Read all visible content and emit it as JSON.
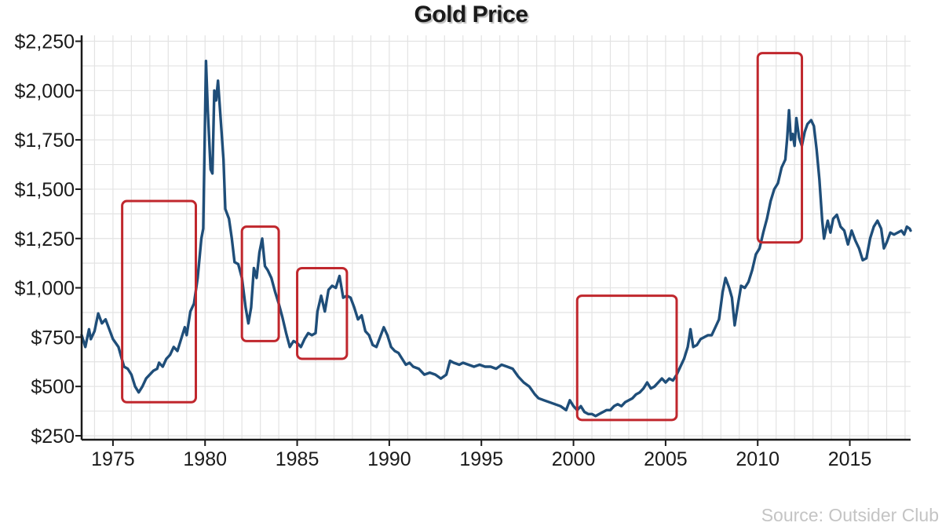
{
  "chart_data": {
    "type": "line",
    "title": "Gold Price",
    "source": "Source: Outsider Club",
    "xlabel": "",
    "ylabel": "",
    "xlim": [
      1973.3,
      2018.3
    ],
    "ylim": [
      230,
      2280
    ],
    "x_ticks": [
      1975,
      1980,
      1985,
      1990,
      1995,
      2000,
      2005,
      2010,
      2015
    ],
    "y_ticks": [
      250,
      500,
      750,
      1000,
      1250,
      1500,
      1750,
      2000,
      2250
    ],
    "y_tick_labels": [
      "$250",
      "$500",
      "$750",
      "$1,000",
      "$1,250",
      "$1,500",
      "$1,750",
      "$2,000",
      "$2,250"
    ],
    "grid": true,
    "colors": {
      "line": "#1f4e79",
      "highlight": "#c0272d",
      "grid": "#e3e3e3",
      "axis": "#1a1a1a"
    },
    "series": [
      {
        "values": [
          [
            1973.3,
            760
          ],
          [
            1973.5,
            700
          ],
          [
            1973.7,
            790
          ],
          [
            1973.8,
            740
          ],
          [
            1974.0,
            780
          ],
          [
            1974.2,
            870
          ],
          [
            1974.4,
            820
          ],
          [
            1974.6,
            840
          ],
          [
            1974.8,
            790
          ],
          [
            1975.0,
            740
          ],
          [
            1975.3,
            700
          ],
          [
            1975.6,
            600
          ],
          [
            1975.8,
            590
          ],
          [
            1976.0,
            560
          ],
          [
            1976.2,
            500
          ],
          [
            1976.4,
            470
          ],
          [
            1976.6,
            500
          ],
          [
            1976.8,
            540
          ],
          [
            1977.0,
            560
          ],
          [
            1977.2,
            580
          ],
          [
            1977.4,
            590
          ],
          [
            1977.5,
            620
          ],
          [
            1977.7,
            600
          ],
          [
            1977.9,
            640
          ],
          [
            1978.1,
            660
          ],
          [
            1978.3,
            700
          ],
          [
            1978.5,
            680
          ],
          [
            1978.7,
            740
          ],
          [
            1978.9,
            800
          ],
          [
            1979.0,
            760
          ],
          [
            1979.2,
            880
          ],
          [
            1979.4,
            920
          ],
          [
            1979.6,
            1050
          ],
          [
            1979.8,
            1250
          ],
          [
            1979.9,
            1300
          ],
          [
            1980.05,
            2150
          ],
          [
            1980.15,
            1900
          ],
          [
            1980.3,
            1600
          ],
          [
            1980.4,
            1580
          ],
          [
            1980.5,
            2000
          ],
          [
            1980.6,
            1950
          ],
          [
            1980.7,
            2050
          ],
          [
            1980.85,
            1850
          ],
          [
            1981.0,
            1650
          ],
          [
            1981.1,
            1400
          ],
          [
            1981.3,
            1350
          ],
          [
            1981.45,
            1250
          ],
          [
            1981.6,
            1130
          ],
          [
            1981.8,
            1120
          ],
          [
            1982.0,
            1050
          ],
          [
            1982.2,
            900
          ],
          [
            1982.35,
            820
          ],
          [
            1982.5,
            900
          ],
          [
            1982.65,
            1100
          ],
          [
            1982.8,
            1050
          ],
          [
            1982.95,
            1180
          ],
          [
            1983.1,
            1250
          ],
          [
            1983.25,
            1110
          ],
          [
            1983.4,
            1090
          ],
          [
            1983.6,
            1050
          ],
          [
            1983.8,
            980
          ],
          [
            1984.0,
            920
          ],
          [
            1984.2,
            850
          ],
          [
            1984.4,
            770
          ],
          [
            1984.6,
            700
          ],
          [
            1984.8,
            730
          ],
          [
            1985.0,
            720
          ],
          [
            1985.2,
            700
          ],
          [
            1985.4,
            740
          ],
          [
            1985.6,
            770
          ],
          [
            1985.8,
            760
          ],
          [
            1986.0,
            770
          ],
          [
            1986.1,
            880
          ],
          [
            1986.3,
            960
          ],
          [
            1986.5,
            880
          ],
          [
            1986.7,
            990
          ],
          [
            1986.9,
            1010
          ],
          [
            1987.1,
            1000
          ],
          [
            1987.3,
            1060
          ],
          [
            1987.5,
            950
          ],
          [
            1987.7,
            960
          ],
          [
            1987.9,
            950
          ],
          [
            1988.1,
            900
          ],
          [
            1988.3,
            840
          ],
          [
            1988.5,
            860
          ],
          [
            1988.7,
            780
          ],
          [
            1988.9,
            760
          ],
          [
            1989.1,
            710
          ],
          [
            1989.3,
            700
          ],
          [
            1989.5,
            750
          ],
          [
            1989.7,
            800
          ],
          [
            1989.9,
            760
          ],
          [
            1990.1,
            700
          ],
          [
            1990.3,
            680
          ],
          [
            1990.5,
            670
          ],
          [
            1990.7,
            640
          ],
          [
            1990.9,
            610
          ],
          [
            1991.1,
            620
          ],
          [
            1991.3,
            600
          ],
          [
            1991.6,
            590
          ],
          [
            1991.9,
            560
          ],
          [
            1992.2,
            570
          ],
          [
            1992.5,
            560
          ],
          [
            1992.8,
            540
          ],
          [
            1993.1,
            560
          ],
          [
            1993.3,
            630
          ],
          [
            1993.5,
            620
          ],
          [
            1993.8,
            610
          ],
          [
            1994.0,
            620
          ],
          [
            1994.3,
            610
          ],
          [
            1994.6,
            600
          ],
          [
            1994.9,
            610
          ],
          [
            1995.2,
            600
          ],
          [
            1995.5,
            600
          ],
          [
            1995.8,
            590
          ],
          [
            1996.1,
            610
          ],
          [
            1996.4,
            600
          ],
          [
            1996.7,
            590
          ],
          [
            1997.0,
            550
          ],
          [
            1997.3,
            520
          ],
          [
            1997.6,
            500
          ],
          [
            1997.9,
            460
          ],
          [
            1998.1,
            440
          ],
          [
            1998.4,
            430
          ],
          [
            1998.7,
            420
          ],
          [
            1999.0,
            410
          ],
          [
            1999.3,
            400
          ],
          [
            1999.6,
            380
          ],
          [
            1999.8,
            430
          ],
          [
            2000.0,
            400
          ],
          [
            2000.2,
            380
          ],
          [
            2000.4,
            400
          ],
          [
            2000.6,
            370
          ],
          [
            2000.8,
            360
          ],
          [
            2001.0,
            360
          ],
          [
            2001.2,
            350
          ],
          [
            2001.4,
            360
          ],
          [
            2001.6,
            370
          ],
          [
            2001.8,
            380
          ],
          [
            2002.0,
            380
          ],
          [
            2002.2,
            400
          ],
          [
            2002.4,
            410
          ],
          [
            2002.6,
            400
          ],
          [
            2002.8,
            420
          ],
          [
            2003.0,
            430
          ],
          [
            2003.2,
            440
          ],
          [
            2003.4,
            460
          ],
          [
            2003.6,
            470
          ],
          [
            2003.8,
            490
          ],
          [
            2004.0,
            520
          ],
          [
            2004.2,
            490
          ],
          [
            2004.4,
            500
          ],
          [
            2004.6,
            520
          ],
          [
            2004.8,
            540
          ],
          [
            2005.0,
            520
          ],
          [
            2005.2,
            540
          ],
          [
            2005.4,
            530
          ],
          [
            2005.6,
            560
          ],
          [
            2005.8,
            600
          ],
          [
            2006.0,
            640
          ],
          [
            2006.2,
            700
          ],
          [
            2006.35,
            790
          ],
          [
            2006.5,
            700
          ],
          [
            2006.7,
            710
          ],
          [
            2006.9,
            740
          ],
          [
            2007.1,
            750
          ],
          [
            2007.3,
            760
          ],
          [
            2007.5,
            760
          ],
          [
            2007.7,
            800
          ],
          [
            2007.9,
            840
          ],
          [
            2008.1,
            980
          ],
          [
            2008.25,
            1050
          ],
          [
            2008.45,
            1000
          ],
          [
            2008.6,
            950
          ],
          [
            2008.75,
            810
          ],
          [
            2008.9,
            900
          ],
          [
            2009.1,
            1010
          ],
          [
            2009.3,
            1000
          ],
          [
            2009.5,
            1030
          ],
          [
            2009.7,
            1090
          ],
          [
            2009.9,
            1170
          ],
          [
            2010.1,
            1200
          ],
          [
            2010.3,
            1280
          ],
          [
            2010.5,
            1350
          ],
          [
            2010.7,
            1440
          ],
          [
            2010.9,
            1500
          ],
          [
            2011.1,
            1530
          ],
          [
            2011.3,
            1610
          ],
          [
            2011.5,
            1650
          ],
          [
            2011.6,
            1760
          ],
          [
            2011.7,
            1900
          ],
          [
            2011.8,
            1750
          ],
          [
            2011.9,
            1780
          ],
          [
            2012.0,
            1720
          ],
          [
            2012.1,
            1860
          ],
          [
            2012.25,
            1760
          ],
          [
            2012.4,
            1720
          ],
          [
            2012.55,
            1790
          ],
          [
            2012.7,
            1830
          ],
          [
            2012.9,
            1850
          ],
          [
            2013.05,
            1820
          ],
          [
            2013.2,
            1700
          ],
          [
            2013.35,
            1550
          ],
          [
            2013.5,
            1340
          ],
          [
            2013.6,
            1250
          ],
          [
            2013.8,
            1340
          ],
          [
            2013.95,
            1280
          ],
          [
            2014.1,
            1350
          ],
          [
            2014.3,
            1370
          ],
          [
            2014.5,
            1310
          ],
          [
            2014.7,
            1290
          ],
          [
            2014.9,
            1220
          ],
          [
            2015.1,
            1290
          ],
          [
            2015.3,
            1240
          ],
          [
            2015.5,
            1200
          ],
          [
            2015.7,
            1140
          ],
          [
            2015.9,
            1150
          ],
          [
            2016.1,
            1250
          ],
          [
            2016.3,
            1310
          ],
          [
            2016.5,
            1340
          ],
          [
            2016.7,
            1300
          ],
          [
            2016.85,
            1200
          ],
          [
            2017.0,
            1230
          ],
          [
            2017.2,
            1280
          ],
          [
            2017.4,
            1270
          ],
          [
            2017.6,
            1280
          ],
          [
            2017.8,
            1290
          ],
          [
            2017.95,
            1270
          ],
          [
            2018.1,
            1310
          ],
          [
            2018.25,
            1300
          ],
          [
            2018.3,
            1290
          ]
        ]
      }
    ],
    "highlight_boxes": [
      {
        "x": [
          1975.5,
          1979.5
        ],
        "y": [
          420,
          1440
        ]
      },
      {
        "x": [
          1982.0,
          1984.0
        ],
        "y": [
          730,
          1310
        ]
      },
      {
        "x": [
          1985.0,
          1987.7
        ],
        "y": [
          640,
          1100
        ]
      },
      {
        "x": [
          2000.2,
          2005.6
        ],
        "y": [
          330,
          960
        ]
      },
      {
        "x": [
          2010.0,
          2012.4
        ],
        "y": [
          1230,
          2190
        ]
      }
    ]
  }
}
